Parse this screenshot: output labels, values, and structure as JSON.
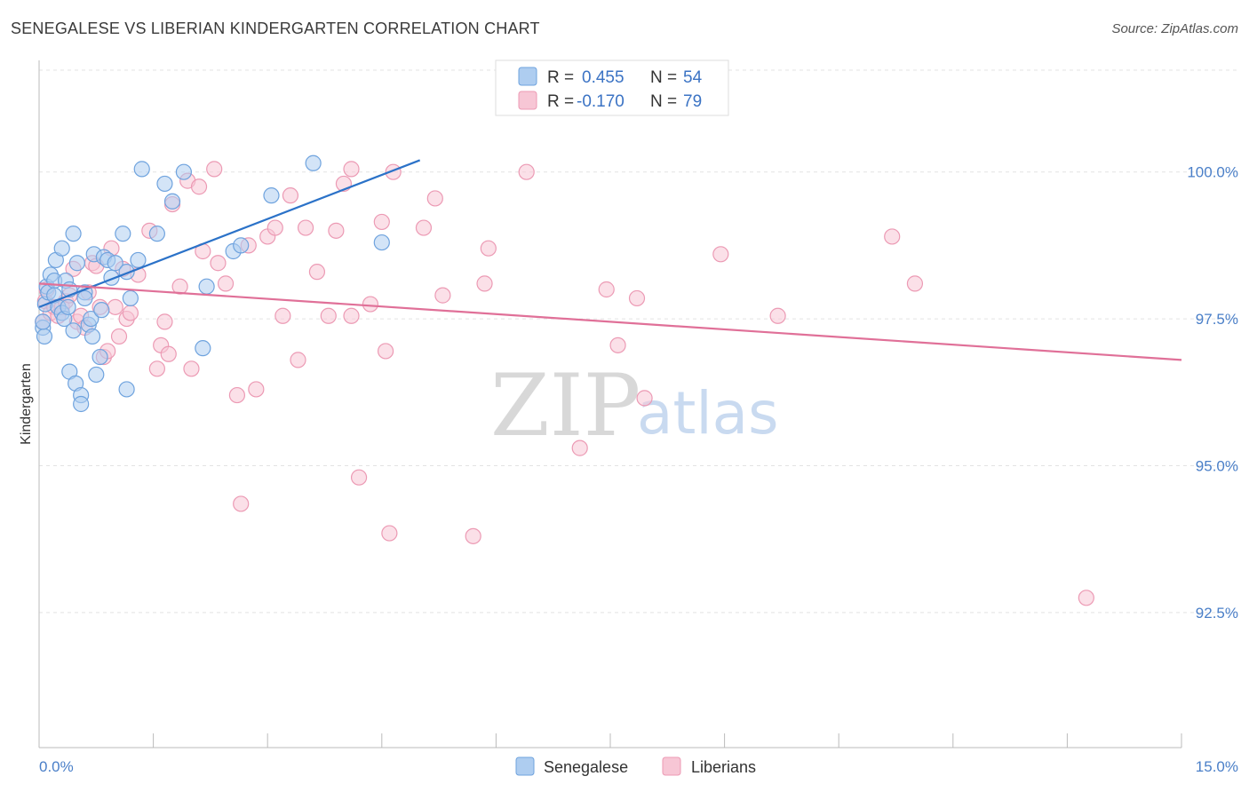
{
  "title": "SENEGALESE VS LIBERIAN KINDERGARTEN CORRELATION CHART",
  "source": "Source: ZipAtlas.com",
  "watermark": {
    "zip": "ZIP",
    "atlas": "atlas"
  },
  "colors": {
    "blue_fill": "#aecdf0",
    "blue_stroke": "#6fa3de",
    "blue_line": "#2b72c8",
    "pink_fill": "#f7c6d5",
    "pink_stroke": "#ec9ab4",
    "pink_line": "#e07098",
    "grid": "#e3e3e3",
    "tick_label": "#4a7fc8"
  },
  "legend": {
    "rows": [
      {
        "r_label": "R =",
        "r_value": "0.455",
        "n_label": "N =",
        "n_value": "54"
      },
      {
        "r_label": "R =",
        "r_value": "-0.170",
        "n_label": "N =",
        "n_value": "79"
      }
    ]
  },
  "chart_data": {
    "type": "scatter",
    "title": "SENEGALESE VS LIBERIAN KINDERGARTEN CORRELATION CHART",
    "xlabel": "",
    "ylabel": "Kindergarten",
    "xlim": [
      0,
      15
    ],
    "ylim": [
      90.2,
      101.9
    ],
    "x_tick_labels": [
      "0.0%",
      "15.0%"
    ],
    "y_ticks": [
      92.5,
      95.0,
      97.5,
      100.0
    ],
    "y_tick_labels": [
      "92.5%",
      "95.0%",
      "97.5%",
      "100.0%"
    ],
    "grid": true,
    "legend_position": "top-center",
    "series": [
      {
        "name": "Senegalese",
        "color": "#aecdf0",
        "r": 0.455,
        "n": 54,
        "trend": {
          "x": [
            0.0,
            5.0
          ],
          "y": [
            97.7,
            100.2
          ]
        },
        "points": [
          [
            0.05,
            97.35
          ],
          [
            0.07,
            97.2
          ],
          [
            0.08,
            97.75
          ],
          [
            0.1,
            98.05
          ],
          [
            0.12,
            97.95
          ],
          [
            0.15,
            98.25
          ],
          [
            0.2,
            98.15
          ],
          [
            0.2,
            97.9
          ],
          [
            0.22,
            98.5
          ],
          [
            0.25,
            97.7
          ],
          [
            0.3,
            97.6
          ],
          [
            0.3,
            98.7
          ],
          [
            0.33,
            97.5
          ],
          [
            0.35,
            98.15
          ],
          [
            0.38,
            97.7
          ],
          [
            0.4,
            98.0
          ],
          [
            0.4,
            96.6
          ],
          [
            0.45,
            98.95
          ],
          [
            0.45,
            97.3
          ],
          [
            0.48,
            96.4
          ],
          [
            0.5,
            98.45
          ],
          [
            0.55,
            96.2
          ],
          [
            0.55,
            96.05
          ],
          [
            0.6,
            97.95
          ],
          [
            0.6,
            97.85
          ],
          [
            0.65,
            97.4
          ],
          [
            0.68,
            97.5
          ],
          [
            0.7,
            97.2
          ],
          [
            0.72,
            98.6
          ],
          [
            0.75,
            96.55
          ],
          [
            0.8,
            96.85
          ],
          [
            0.82,
            97.65
          ],
          [
            0.85,
            98.55
          ],
          [
            0.9,
            98.5
          ],
          [
            0.95,
            98.2
          ],
          [
            1.0,
            98.45
          ],
          [
            1.1,
            98.95
          ],
          [
            1.15,
            98.3
          ],
          [
            1.15,
            96.3
          ],
          [
            1.2,
            97.85
          ],
          [
            1.3,
            98.5
          ],
          [
            1.35,
            100.05
          ],
          [
            1.55,
            98.95
          ],
          [
            1.65,
            99.8
          ],
          [
            1.75,
            99.5
          ],
          [
            1.9,
            100.0
          ],
          [
            2.15,
            97.0
          ],
          [
            2.2,
            98.05
          ],
          [
            2.55,
            98.65
          ],
          [
            2.65,
            98.75
          ],
          [
            3.05,
            99.6
          ],
          [
            3.6,
            100.15
          ],
          [
            4.5,
            98.8
          ],
          [
            0.05,
            97.45
          ]
        ]
      },
      {
        "name": "Liberians",
        "color": "#f7c6d5",
        "r": -0.17,
        "n": 79,
        "trend": {
          "x": [
            0.0,
            15.0
          ],
          "y": [
            98.1,
            96.8
          ]
        },
        "points": [
          [
            0.05,
            97.45
          ],
          [
            0.08,
            97.8
          ],
          [
            0.1,
            98.0
          ],
          [
            0.15,
            97.6
          ],
          [
            0.2,
            97.7
          ],
          [
            0.25,
            97.55
          ],
          [
            0.3,
            97.7
          ],
          [
            0.35,
            97.8
          ],
          [
            0.4,
            97.9
          ],
          [
            0.45,
            98.35
          ],
          [
            0.5,
            97.45
          ],
          [
            0.55,
            97.55
          ],
          [
            0.6,
            97.35
          ],
          [
            0.65,
            97.95
          ],
          [
            0.7,
            98.45
          ],
          [
            0.75,
            98.4
          ],
          [
            0.8,
            97.7
          ],
          [
            0.85,
            96.85
          ],
          [
            0.9,
            96.95
          ],
          [
            0.95,
            98.7
          ],
          [
            1.0,
            97.7
          ],
          [
            1.05,
            97.2
          ],
          [
            1.1,
            98.35
          ],
          [
            1.15,
            97.5
          ],
          [
            1.2,
            97.6
          ],
          [
            1.3,
            98.25
          ],
          [
            1.45,
            99.0
          ],
          [
            1.55,
            96.65
          ],
          [
            1.6,
            97.05
          ],
          [
            1.65,
            97.45
          ],
          [
            1.7,
            96.9
          ],
          [
            1.75,
            99.45
          ],
          [
            1.85,
            98.05
          ],
          [
            1.95,
            99.85
          ],
          [
            2.0,
            96.65
          ],
          [
            2.1,
            99.75
          ],
          [
            2.15,
            98.65
          ],
          [
            2.3,
            100.05
          ],
          [
            2.35,
            98.45
          ],
          [
            2.45,
            98.1
          ],
          [
            2.6,
            96.2
          ],
          [
            2.65,
            94.35
          ],
          [
            2.75,
            98.75
          ],
          [
            2.85,
            96.3
          ],
          [
            3.0,
            98.9
          ],
          [
            3.1,
            99.05
          ],
          [
            3.2,
            97.55
          ],
          [
            3.3,
            99.6
          ],
          [
            3.4,
            96.8
          ],
          [
            3.5,
            99.05
          ],
          [
            3.65,
            98.3
          ],
          [
            3.8,
            97.55
          ],
          [
            3.9,
            99.0
          ],
          [
            4.0,
            99.8
          ],
          [
            4.1,
            97.55
          ],
          [
            4.1,
            100.05
          ],
          [
            4.2,
            94.8
          ],
          [
            4.35,
            97.75
          ],
          [
            4.5,
            99.15
          ],
          [
            4.55,
            96.95
          ],
          [
            4.6,
            93.85
          ],
          [
            4.65,
            100.0
          ],
          [
            5.05,
            99.05
          ],
          [
            5.2,
            99.55
          ],
          [
            5.3,
            97.9
          ],
          [
            5.7,
            93.8
          ],
          [
            5.85,
            98.1
          ],
          [
            5.9,
            98.7
          ],
          [
            6.4,
            100.0
          ],
          [
            7.1,
            95.3
          ],
          [
            7.45,
            98.0
          ],
          [
            7.6,
            97.05
          ],
          [
            7.85,
            97.85
          ],
          [
            7.95,
            96.15
          ],
          [
            8.95,
            98.6
          ],
          [
            9.7,
            97.55
          ],
          [
            11.2,
            98.9
          ],
          [
            11.5,
            98.1
          ],
          [
            13.75,
            92.75
          ]
        ]
      }
    ]
  }
}
